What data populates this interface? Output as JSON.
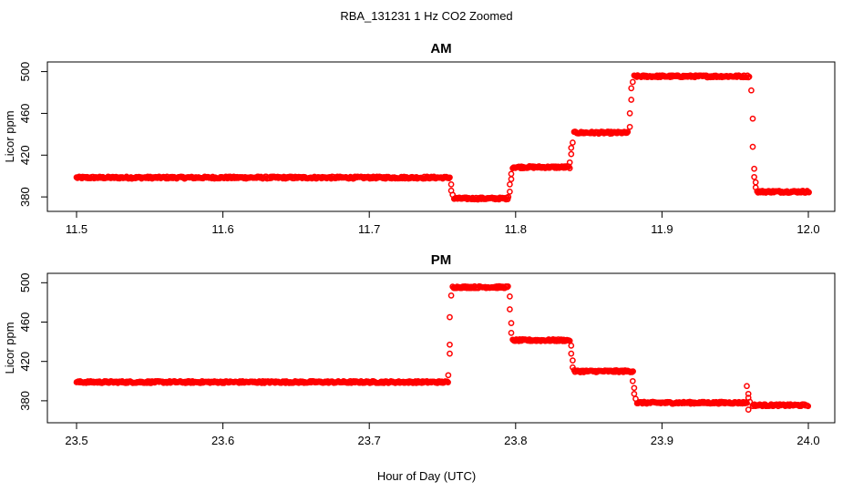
{
  "figure": {
    "title": "RBA_131231  1 Hz CO2 Zoomed",
    "xlabel": "Hour of Day (UTC)"
  },
  "colors": {
    "points": "#ff0000",
    "axis": "#000000",
    "background": "#ffffff"
  },
  "chart_data": [
    {
      "type": "scatter",
      "title": "AM",
      "xlabel": "",
      "ylabel": "Licor ppm",
      "xlim": [
        11.5,
        12.0
      ],
      "ylim": [
        374,
        504
      ],
      "xticks": [
        "11.5",
        "11.6",
        "11.7",
        "11.8",
        "11.9",
        "12.0"
      ],
      "yticks": [
        "380",
        "420",
        "460",
        "500"
      ],
      "grid": false,
      "legend": "none",
      "series": [
        {
          "segments": [
            {
              "x_start": 11.5,
              "x_end": 11.755,
              "y": 398.5
            },
            {
              "x_start": 11.758,
              "x_end": 11.795,
              "y": 378.5
            },
            {
              "x_start": 11.798,
              "x_end": 11.837,
              "y": 408.5
            },
            {
              "x_start": 11.84,
              "x_end": 11.877,
              "y": 441.5
            },
            {
              "x_start": 11.881,
              "x_end": 11.96,
              "y": 495.5
            },
            {
              "x_start": 11.965,
              "x_end": 12.0,
              "y": 385.0
            }
          ],
          "transition_points": [
            [
              11.756,
              392
            ],
            [
              11.756,
              386
            ],
            [
              11.757,
              382
            ],
            [
              11.795,
              380
            ],
            [
              11.796,
              385
            ],
            [
              11.796,
              392
            ],
            [
              11.797,
              397
            ],
            [
              11.797,
              402
            ],
            [
              11.837,
              413
            ],
            [
              11.838,
              421
            ],
            [
              11.838,
              427
            ],
            [
              11.839,
              432
            ],
            [
              11.878,
              447
            ],
            [
              11.878,
              460
            ],
            [
              11.879,
              473
            ],
            [
              11.879,
              484
            ],
            [
              11.88,
              490
            ],
            [
              11.961,
              482
            ],
            [
              11.962,
              455
            ],
            [
              11.962,
              428
            ],
            [
              11.963,
              407
            ],
            [
              11.963,
              399
            ],
            [
              11.964,
              394
            ],
            [
              11.964,
              389
            ]
          ]
        }
      ]
    },
    {
      "type": "scatter",
      "title": "PM",
      "xlabel": "Hour of Day (UTC)",
      "ylabel": "Licor ppm",
      "xlim": [
        23.5,
        24.0
      ],
      "ylim": [
        366,
        504
      ],
      "xticks": [
        "23.5",
        "23.6",
        "23.7",
        "23.8",
        "23.9",
        "24.0"
      ],
      "yticks": [
        "380",
        "420",
        "460",
        "500"
      ],
      "grid": false,
      "legend": "none",
      "series": [
        {
          "segments": [
            {
              "x_start": 23.5,
              "x_end": 23.754,
              "y": 399.0
            },
            {
              "x_start": 23.757,
              "x_end": 23.795,
              "y": 495.5
            },
            {
              "x_start": 23.798,
              "x_end": 23.837,
              "y": 441.5
            },
            {
              "x_start": 23.84,
              "x_end": 23.88,
              "y": 410.0
            },
            {
              "x_start": 23.883,
              "x_end": 23.958,
              "y": 378.0
            },
            {
              "x_start": 23.962,
              "x_end": 24.0,
              "y": 375.5
            }
          ],
          "transition_points": [
            [
              23.754,
              406
            ],
            [
              23.755,
              428
            ],
            [
              23.755,
              437
            ],
            [
              23.755,
              465
            ],
            [
              23.756,
              487
            ],
            [
              23.796,
              486
            ],
            [
              23.796,
              473
            ],
            [
              23.797,
              459
            ],
            [
              23.797,
              449
            ],
            [
              23.838,
              436
            ],
            [
              23.838,
              428
            ],
            [
              23.839,
              421
            ],
            [
              23.839,
              414
            ],
            [
              23.88,
              400
            ],
            [
              23.881,
              393
            ],
            [
              23.881,
              387
            ],
            [
              23.882,
              382
            ],
            [
              23.958,
              395
            ],
            [
              23.959,
              387
            ],
            [
              23.959,
              383
            ],
            [
              23.959,
              371
            ],
            [
              23.96,
              379
            ]
          ]
        }
      ]
    }
  ]
}
